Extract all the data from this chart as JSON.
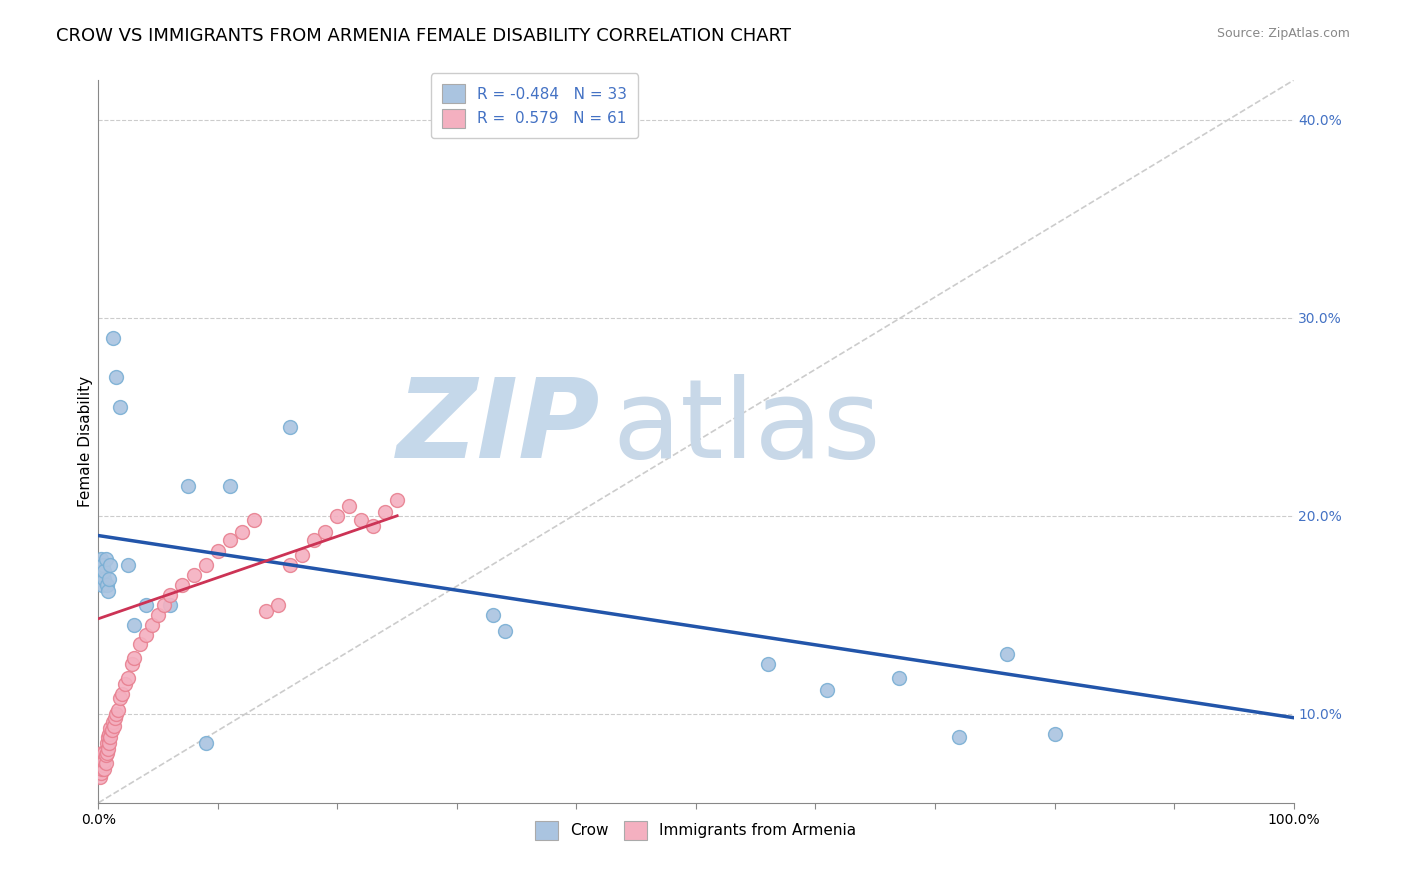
{
  "title": "CROW VS IMMIGRANTS FROM ARMENIA FEMALE DISABILITY CORRELATION CHART",
  "source": "Source: ZipAtlas.com",
  "xlabel": "",
  "ylabel": "Female Disability",
  "xlim": [
    0,
    1.0
  ],
  "ylim": [
    0.055,
    0.42
  ],
  "yticks_right": [
    0.1,
    0.2,
    0.3,
    0.4
  ],
  "yticklabels_right": [
    "10.0%",
    "20.0%",
    "30.0%",
    "40.0%"
  ],
  "crow_R": -0.484,
  "crow_N": 33,
  "armenia_R": 0.579,
  "armenia_N": 61,
  "crow_color": "#aac4e0",
  "crow_edge_color": "#7aafd4",
  "crow_line_color": "#2255aa",
  "armenia_color": "#f4b0c0",
  "armenia_edge_color": "#e88090",
  "armenia_line_color": "#cc3355",
  "crow_scatter_x": [
    0.001,
    0.002,
    0.002,
    0.003,
    0.003,
    0.004,
    0.004,
    0.005,
    0.005,
    0.006,
    0.007,
    0.008,
    0.009,
    0.01,
    0.012,
    0.015,
    0.018,
    0.025,
    0.03,
    0.04,
    0.06,
    0.075,
    0.09,
    0.11,
    0.16,
    0.33,
    0.34,
    0.56,
    0.61,
    0.67,
    0.72,
    0.76,
    0.8
  ],
  "crow_scatter_y": [
    0.175,
    0.168,
    0.178,
    0.165,
    0.172,
    0.17,
    0.175,
    0.168,
    0.172,
    0.178,
    0.165,
    0.162,
    0.168,
    0.175,
    0.29,
    0.27,
    0.255,
    0.175,
    0.145,
    0.155,
    0.155,
    0.215,
    0.085,
    0.215,
    0.245,
    0.15,
    0.142,
    0.125,
    0.112,
    0.118,
    0.088,
    0.13,
    0.09
  ],
  "armenia_scatter_x": [
    0.001,
    0.001,
    0.001,
    0.002,
    0.002,
    0.002,
    0.003,
    0.003,
    0.003,
    0.004,
    0.004,
    0.005,
    0.005,
    0.005,
    0.006,
    0.006,
    0.007,
    0.007,
    0.008,
    0.008,
    0.009,
    0.009,
    0.01,
    0.01,
    0.011,
    0.012,
    0.013,
    0.014,
    0.015,
    0.016,
    0.018,
    0.02,
    0.022,
    0.025,
    0.028,
    0.03,
    0.035,
    0.04,
    0.045,
    0.05,
    0.055,
    0.06,
    0.07,
    0.08,
    0.09,
    0.1,
    0.11,
    0.12,
    0.13,
    0.14,
    0.15,
    0.16,
    0.17,
    0.18,
    0.19,
    0.2,
    0.21,
    0.22,
    0.23,
    0.24,
    0.25
  ],
  "armenia_scatter_y": [
    0.068,
    0.072,
    0.076,
    0.07,
    0.074,
    0.078,
    0.072,
    0.076,
    0.08,
    0.074,
    0.078,
    0.072,
    0.076,
    0.08,
    0.075,
    0.079,
    0.08,
    0.085,
    0.082,
    0.088,
    0.085,
    0.09,
    0.088,
    0.093,
    0.092,
    0.096,
    0.094,
    0.098,
    0.1,
    0.102,
    0.108,
    0.11,
    0.115,
    0.118,
    0.125,
    0.128,
    0.135,
    0.14,
    0.145,
    0.15,
    0.155,
    0.16,
    0.165,
    0.17,
    0.175,
    0.182,
    0.188,
    0.192,
    0.198,
    0.152,
    0.155,
    0.175,
    0.18,
    0.188,
    0.192,
    0.2,
    0.205,
    0.198,
    0.195,
    0.202,
    0.208
  ],
  "crow_trend_x": [
    0.0,
    1.0
  ],
  "crow_trend_y": [
    0.19,
    0.098
  ],
  "armenia_trend_x": [
    0.0,
    0.25
  ],
  "armenia_trend_y": [
    0.148,
    0.2
  ],
  "diag_line_x": [
    0.0,
    1.0
  ],
  "diag_line_y": [
    0.055,
    0.42
  ],
  "watermark_zip": "ZIP",
  "watermark_atlas": "atlas",
  "watermark_color_zip": "#c5d8ea",
  "watermark_color_atlas": "#c8d8e8",
  "bg_color": "#ffffff",
  "grid_color": "#cccccc",
  "title_fontsize": 13,
  "axis_label_fontsize": 11,
  "tick_fontsize": 10,
  "legend_fontsize": 11
}
